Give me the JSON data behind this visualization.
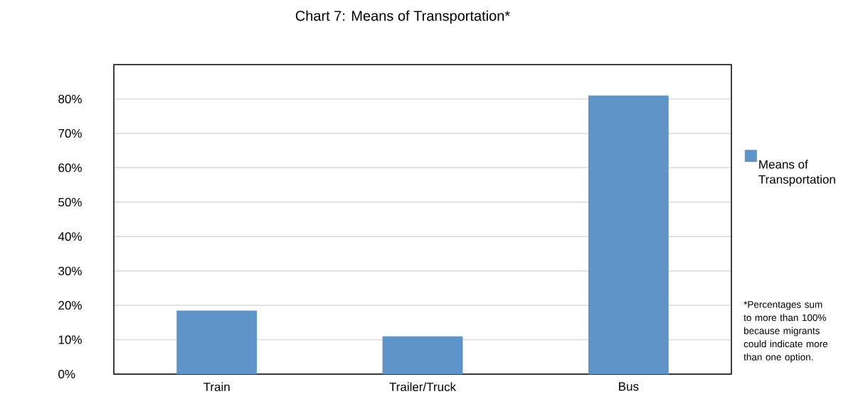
{
  "chart_data": {
    "type": "bar",
    "title": "Chart 7: Means of Transportation*",
    "categories": [
      "Train",
      "Trailer/Truck",
      "Bus"
    ],
    "series": [
      {
        "name": "Means of Transportation",
        "color": "#5f94c8",
        "values": [
          18.5,
          11,
          81
        ]
      }
    ],
    "ylim": [
      0,
      90
    ],
    "yticks": [
      {
        "value": 0,
        "label": "0%"
      },
      {
        "value": 10,
        "label": "10%"
      },
      {
        "value": 20,
        "label": "20%"
      },
      {
        "value": 30,
        "label": "30%"
      },
      {
        "value": 40,
        "label": "40%"
      },
      {
        "value": 50,
        "label": "50%"
      },
      {
        "value": 60,
        "label": "60%"
      },
      {
        "value": 70,
        "label": "70%"
      },
      {
        "value": 80,
        "label": "80%"
      }
    ],
    "grid": "y",
    "legend": "right",
    "annotations": [
      "*Percentages sum to more than 100% because migrants could indicate more than one option."
    ]
  }
}
